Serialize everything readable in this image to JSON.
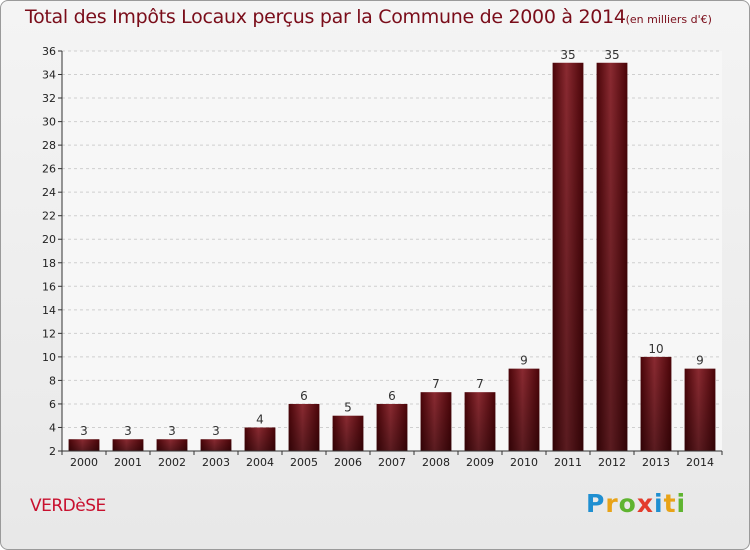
{
  "chart_data": {
    "type": "bar",
    "title": "Total des Impôts Locaux perçus par la Commune de 2000 à 2014",
    "unit": "(en milliers d'€)",
    "categories": [
      "2000",
      "2001",
      "2002",
      "2003",
      "2004",
      "2005",
      "2006",
      "2007",
      "2008",
      "2009",
      "2010",
      "2011",
      "2012",
      "2013",
      "2014"
    ],
    "values": [
      3,
      3,
      3,
      3,
      4,
      6,
      5,
      6,
      7,
      7,
      9,
      35,
      35,
      10,
      9
    ],
    "ylim": [
      2,
      36
    ],
    "yticks": [
      2,
      4,
      6,
      8,
      10,
      12,
      14,
      16,
      18,
      20,
      22,
      24,
      26,
      28,
      30,
      32,
      34,
      36
    ],
    "xlabel": "",
    "ylabel": "",
    "grid": true,
    "bar_color": "#7a1620"
  },
  "commune": "VERDèSE",
  "logo": [
    "P",
    "r",
    "o",
    "x",
    "i",
    "t",
    "i"
  ]
}
